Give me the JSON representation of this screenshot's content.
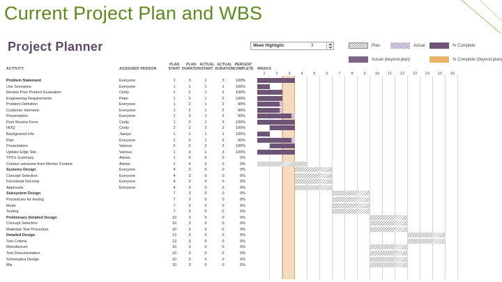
{
  "slide": {
    "title": "Current Project Plan and WBS"
  },
  "planner": {
    "title": "Project Planner",
    "highlight": {
      "label": "Week Highlight:",
      "value": "3"
    },
    "legend": [
      {
        "label": "Plan",
        "swatch": "plan"
      },
      {
        "label": "Actual",
        "swatch": "actual"
      },
      {
        "label": "% Complete",
        "swatch": "complete"
      },
      {
        "label": "Actual (beyond plan)",
        "swatch": "actual-beyond"
      },
      {
        "label": "% Complete (beyond plan)",
        "swatch": "complete-beyond"
      }
    ],
    "colors": {
      "complete": "#6e5578",
      "beyond": "#e8b46a",
      "highlight": "#f6dcbf",
      "title": "#5c8a1c",
      "planner_title": "#5d4a66"
    }
  },
  "headers": {
    "activity": "ACTIVITY",
    "assigned": "ASSIGNED PERSON",
    "plan_start": [
      "PLAN",
      "START"
    ],
    "plan_duration": [
      "PLAN",
      "DURATION"
    ],
    "actual_start": [
      "ACTUAL",
      "START"
    ],
    "actual_duration": [
      "ACTUAL",
      "DURATION"
    ],
    "percent_complete": [
      "PERCENT",
      "COMPLETE"
    ],
    "weeks": "WEEKS"
  },
  "weeks": [
    "1",
    "2",
    "3",
    "4",
    "5",
    "6",
    "7",
    "8",
    "9",
    "10",
    "11",
    "12",
    "13",
    "14",
    "15",
    "16"
  ],
  "tasks": [
    {
      "name": "Problem Statement",
      "bold": true,
      "person": "Everyone",
      "ps": "1",
      "pd": "3",
      "as": "1",
      "ad": "3",
      "pct": "100%"
    },
    {
      "name": "Use Scenarios",
      "person": "Everyone",
      "ps": "1",
      "pd": "1",
      "as": "1",
      "ad": "1",
      "pct": "100%"
    },
    {
      "name": "Review Prior Product Evaluation",
      "person": "Cindy",
      "ps": "1",
      "pd": "2",
      "as": "1",
      "ad": "2",
      "pct": "100%"
    },
    {
      "name": "Engineering Requirements",
      "person": "Peter",
      "ps": "1",
      "pd": "2",
      "as": "1",
      "ad": "2",
      "pct": "100%"
    },
    {
      "name": "Problem Definition",
      "person": "Everyone",
      "ps": "1",
      "pd": "2",
      "as": "1",
      "ad": "2",
      "pct": "90%"
    },
    {
      "name": "Customer Interview",
      "person": "Everyone",
      "ps": "1",
      "pd": "2",
      "as": "1",
      "ad": "2",
      "pct": "90%"
    },
    {
      "name": "Presentation",
      "person": "Everyone",
      "ps": "1",
      "pd": "3",
      "as": "1",
      "ad": "3",
      "pct": "90%"
    },
    {
      "name": "Peer Review Form",
      "person": "Cindy",
      "ps": "1",
      "pd": "3",
      "as": "1",
      "ad": "3",
      "pct": "100%"
    },
    {
      "name": "HOQ",
      "person": "Cindy",
      "ps": "2",
      "pd": "2",
      "as": "2",
      "ad": "2",
      "pct": "100%"
    },
    {
      "name": "Background Info",
      "person": "Jianlyn",
      "ps": "1",
      "pd": "1",
      "as": "1",
      "ad": "1",
      "pct": "100%"
    },
    {
      "name": "Plan",
      "person": "Everyone",
      "ps": "1",
      "pd": "3",
      "as": "1",
      "ad": "3",
      "pct": "90%"
    },
    {
      "name": "Presentation",
      "person": "Various",
      "ps": "2",
      "pd": "2",
      "as": "2",
      "ad": "2",
      "pct": "100%"
    },
    {
      "name": "Update Edge Site",
      "person": "Various",
      "ps": "1",
      "pd": "3",
      "as": "1",
      "ad": "3",
      "pct": "100%"
    },
    {
      "name": "TPS's Summary",
      "person": "Adrian",
      "ps": "1",
      "pd": "0",
      "as": "0",
      "ad": "0",
      "pct": "0%"
    },
    {
      "name": "Contact someone from Mentor Contest",
      "person": "Adrian",
      "ps": "1",
      "pd": "4",
      "as": "0",
      "ad": "0",
      "pct": "0%"
    },
    {
      "name": "Systems Design",
      "bold": true,
      "person": "Everyone",
      "ps": "4",
      "pd": "3",
      "as": "0",
      "ad": "0",
      "pct": "0%"
    },
    {
      "name": "Concept Selection",
      "person": "Everyone",
      "ps": "4",
      "pd": "3",
      "as": "0",
      "ad": "0",
      "pct": "0%"
    },
    {
      "name": "Functional Decomp",
      "person": "Everyone",
      "ps": "4",
      "pd": "3",
      "as": "0",
      "ad": "0",
      "pct": "0%"
    },
    {
      "name": "Approvals",
      "person": "Everyone",
      "ps": "4",
      "pd": "3",
      "as": "0",
      "ad": "0",
      "pct": "0%"
    },
    {
      "name": "Subsystem Design",
      "bold": true,
      "person": "",
      "ps": "7",
      "pd": "3",
      "as": "0",
      "ad": "0",
      "pct": "0%"
    },
    {
      "name": "Procedures for testing",
      "person": "",
      "ps": "7",
      "pd": "3",
      "as": "0",
      "ad": "0",
      "pct": "0%"
    },
    {
      "name": "Mode",
      "person": "",
      "ps": "7",
      "pd": "3",
      "as": "0",
      "ad": "0",
      "pct": "0%"
    },
    {
      "name": "Testing",
      "person": "",
      "ps": "7",
      "pd": "3",
      "as": "0",
      "ad": "0",
      "pct": "0%"
    },
    {
      "name": "Preliminary Detailed Design",
      "bold": true,
      "person": "",
      "ps": "10",
      "pd": "3",
      "as": "0",
      "ad": "0",
      "pct": "0%"
    },
    {
      "name": "Concept Selection",
      "person": "",
      "ps": "10",
      "pd": "3",
      "as": "0",
      "ad": "0",
      "pct": "0%"
    },
    {
      "name": "Materials Test Procedure",
      "person": "",
      "ps": "10",
      "pd": "3",
      "as": "0",
      "ad": "0",
      "pct": "0%"
    },
    {
      "name": "Detailed Design",
      "bold": true,
      "person": "",
      "ps": "13",
      "pd": "3",
      "as": "0",
      "ad": "0",
      "pct": "0%"
    },
    {
      "name": "Test Criteria",
      "person": "",
      "ps": "13",
      "pd": "3",
      "as": "0",
      "ad": "0",
      "pct": "0%"
    },
    {
      "name": "Manufacture",
      "person": "",
      "ps": "10",
      "pd": "3",
      "as": "0",
      "ad": "0",
      "pct": "0%"
    },
    {
      "name": "Test Documentation",
      "person": "",
      "ps": "10",
      "pd": "3",
      "as": "0",
      "ad": "0",
      "pct": "0%"
    },
    {
      "name": "Schematics Design",
      "person": "",
      "ps": "10",
      "pd": "3",
      "as": "0",
      "ad": "0",
      "pct": "0%"
    },
    {
      "name": "Mix",
      "person": "",
      "ps": "10",
      "pd": "3",
      "as": "0",
      "ad": "0",
      "pct": "0%"
    }
  ]
}
